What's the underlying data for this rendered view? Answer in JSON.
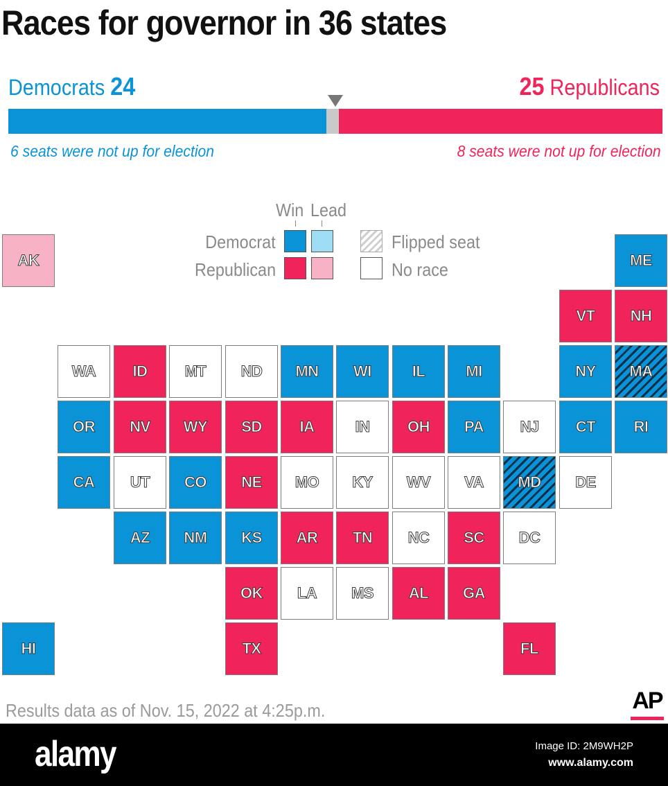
{
  "title": "Races for governor in 36 states",
  "summary": {
    "dem_name": "Democrats",
    "dem_count": "24",
    "rep_count": "25",
    "rep_name": "Republicans",
    "dem_note": "6 seats were not up for election",
    "rep_note": "8 seats were not up for election",
    "bar": {
      "dem_share": 0.4857,
      "undecided_share": 0.0201,
      "rep_share": 0.4942
    }
  },
  "legend": {
    "win_label": "Win",
    "lead_label": "Lead",
    "dem_label": "Democrat",
    "rep_label": "Republican",
    "flipped_label": "Flipped seat",
    "norace_label": "No race"
  },
  "colors": {
    "dem_win": "#0a93d6",
    "dem_lead": "#9ddcf2",
    "rep_win": "#f0245a",
    "rep_lead": "#f7b3c5",
    "undecided": "#c9c9c9",
    "no_race": "#ffffff"
  },
  "map": {
    "states": [
      {
        "abbr": "AK",
        "status": "rep_lead",
        "flipped": false
      },
      {
        "abbr": "ME",
        "status": "dem_win",
        "flipped": false
      },
      {
        "abbr": "VT",
        "status": "rep_win",
        "flipped": false
      },
      {
        "abbr": "NH",
        "status": "rep_win",
        "flipped": false
      },
      {
        "abbr": "WA",
        "status": "no_race",
        "flipped": false
      },
      {
        "abbr": "ID",
        "status": "rep_win",
        "flipped": false
      },
      {
        "abbr": "MT",
        "status": "no_race",
        "flipped": false
      },
      {
        "abbr": "ND",
        "status": "no_race",
        "flipped": false
      },
      {
        "abbr": "MN",
        "status": "dem_win",
        "flipped": false
      },
      {
        "abbr": "WI",
        "status": "dem_win",
        "flipped": false
      },
      {
        "abbr": "IL",
        "status": "dem_win",
        "flipped": false
      },
      {
        "abbr": "MI",
        "status": "dem_win",
        "flipped": false
      },
      {
        "abbr": "NY",
        "status": "dem_win",
        "flipped": false
      },
      {
        "abbr": "MA",
        "status": "dem_win",
        "flipped": true
      },
      {
        "abbr": "OR",
        "status": "dem_win",
        "flipped": false
      },
      {
        "abbr": "NV",
        "status": "rep_win",
        "flipped": false
      },
      {
        "abbr": "WY",
        "status": "rep_win",
        "flipped": false
      },
      {
        "abbr": "SD",
        "status": "rep_win",
        "flipped": false
      },
      {
        "abbr": "IA",
        "status": "rep_win",
        "flipped": false
      },
      {
        "abbr": "IN",
        "status": "no_race",
        "flipped": false
      },
      {
        "abbr": "OH",
        "status": "rep_win",
        "flipped": false
      },
      {
        "abbr": "PA",
        "status": "dem_win",
        "flipped": false
      },
      {
        "abbr": "NJ",
        "status": "no_race",
        "flipped": false
      },
      {
        "abbr": "CT",
        "status": "dem_win",
        "flipped": false
      },
      {
        "abbr": "RI",
        "status": "dem_win",
        "flipped": false
      },
      {
        "abbr": "CA",
        "status": "dem_win",
        "flipped": false
      },
      {
        "abbr": "UT",
        "status": "no_race",
        "flipped": false
      },
      {
        "abbr": "CO",
        "status": "dem_win",
        "flipped": false
      },
      {
        "abbr": "NE",
        "status": "rep_win",
        "flipped": false
      },
      {
        "abbr": "MO",
        "status": "no_race",
        "flipped": false
      },
      {
        "abbr": "KY",
        "status": "no_race",
        "flipped": false
      },
      {
        "abbr": "WV",
        "status": "no_race",
        "flipped": false
      },
      {
        "abbr": "VA",
        "status": "no_race",
        "flipped": false
      },
      {
        "abbr": "MD",
        "status": "dem_win",
        "flipped": true
      },
      {
        "abbr": "DE",
        "status": "no_race",
        "flipped": false
      },
      {
        "abbr": "AZ",
        "status": "dem_win",
        "flipped": false
      },
      {
        "abbr": "NM",
        "status": "dem_win",
        "flipped": false
      },
      {
        "abbr": "KS",
        "status": "dem_win",
        "flipped": false
      },
      {
        "abbr": "AR",
        "status": "rep_win",
        "flipped": false
      },
      {
        "abbr": "TN",
        "status": "rep_win",
        "flipped": false
      },
      {
        "abbr": "NC",
        "status": "no_race",
        "flipped": false
      },
      {
        "abbr": "SC",
        "status": "rep_win",
        "flipped": false
      },
      {
        "abbr": "DC",
        "status": "no_race",
        "flipped": false
      },
      {
        "abbr": "OK",
        "status": "rep_win",
        "flipped": false
      },
      {
        "abbr": "LA",
        "status": "no_race",
        "flipped": false
      },
      {
        "abbr": "MS",
        "status": "no_race",
        "flipped": false
      },
      {
        "abbr": "AL",
        "status": "rep_win",
        "flipped": false
      },
      {
        "abbr": "GA",
        "status": "rep_win",
        "flipped": false
      },
      {
        "abbr": "HI",
        "status": "dem_win",
        "flipped": false
      },
      {
        "abbr": "TX",
        "status": "rep_win",
        "flipped": false
      },
      {
        "abbr": "FL",
        "status": "rep_win",
        "flipped": false
      }
    ]
  },
  "footnote": "Results data as of Nov. 15, 2022 at 4:25p.m.",
  "logo": "AP",
  "watermark": {
    "logo": "alamy",
    "image_id": "Image ID: 2M9WH2P",
    "url": "www.alamy.com"
  }
}
